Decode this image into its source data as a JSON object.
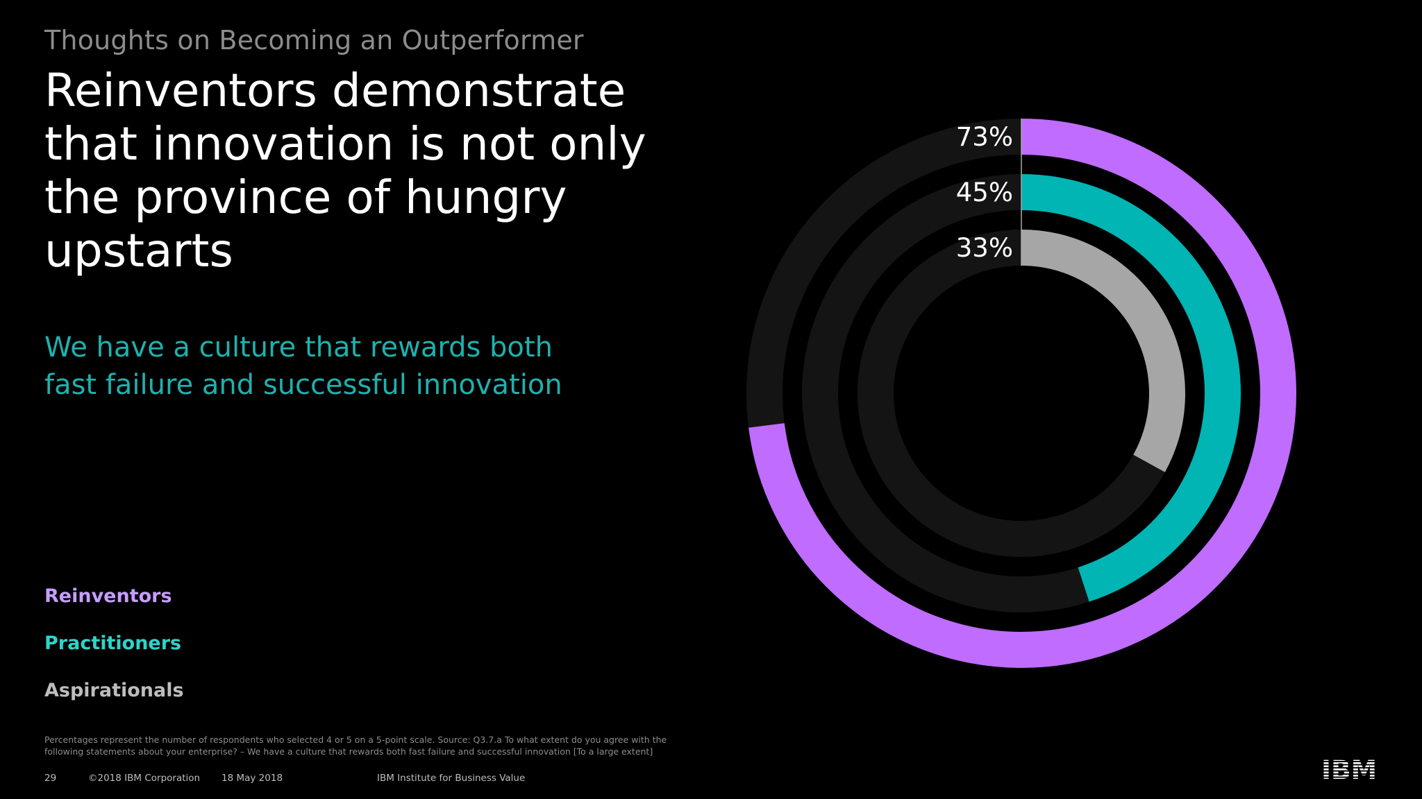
{
  "slide": {
    "eyebrow": "Thoughts on Becoming an Outperformer",
    "headline": "Reinventors demonstrate that innovation is not only the province of hungry upstarts",
    "subhead": "We have a culture that rewards both fast failure and successful innovation",
    "footnote": "Percentages represent the number of respondents who selected 4 or 5 on a 5-point scale. Source: Q3.7.a To what extent do you agree with the following statements about your enterprise? – We have a culture that rewards both fast failure and successful innovation [To a large extent]",
    "footer": {
      "page_number": "29",
      "copyright": "©2018 IBM Corporation",
      "date": "18 May 2018",
      "source": "IBM Institute for Business Value"
    },
    "logo": "IBM"
  },
  "chart_data": {
    "type": "radial-bar",
    "unit": "%",
    "max": 100,
    "series": [
      {
        "name": "Reinventors",
        "value": 73,
        "label": "73%",
        "color": "#bf6cff"
      },
      {
        "name": "Practitioners",
        "value": 45,
        "label": "45%",
        "color": "#00b5b3"
      },
      {
        "name": "Aspirationals",
        "value": 33,
        "label": "33%",
        "color": "#a6a6a6"
      }
    ],
    "track_color": "#141414",
    "legend": {
      "placement": "bottom-left",
      "colors": [
        "#c69eff",
        "#2fd3c9",
        "#bdbdbd"
      ]
    },
    "direction": "clockwise from top"
  }
}
